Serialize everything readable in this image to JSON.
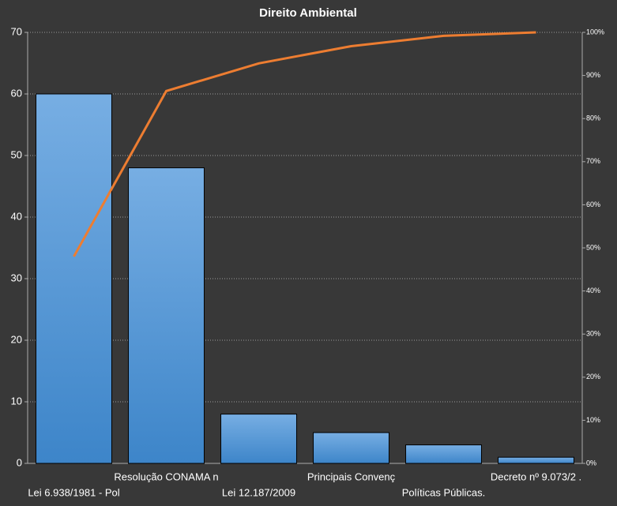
{
  "chart_data": {
    "type": "pareto",
    "title": "Direito  Ambiental",
    "categories": [
      "Lei 6.938/1981 - Pol",
      "Resolução CONAMA n",
      "Lei 12.187/2009",
      "Principais Convenç",
      "Políticas Públicas.",
      "Decreto nº 9.073/2 ."
    ],
    "series": [
      {
        "type": "bar",
        "color": "#5b9bd5",
        "values": [
          60,
          48,
          8,
          5,
          3,
          1
        ]
      },
      {
        "type": "line",
        "axis": "y2",
        "color": "#ed7d31",
        "values": [
          48,
          86.4,
          92.8,
          96.8,
          99.2,
          100
        ]
      }
    ],
    "ylim": [
      0,
      70
    ],
    "yticks": [
      0,
      10,
      20,
      30,
      40,
      50,
      60,
      70
    ],
    "y2lim": [
      0,
      100
    ],
    "y2ticks": [
      {
        "value": 0,
        "label": "0%"
      },
      {
        "value": 10,
        "label": "10%"
      },
      {
        "value": 20,
        "label": "20%"
      },
      {
        "value": 30,
        "label": "30%"
      },
      {
        "value": 40,
        "label": "40%"
      },
      {
        "value": 50,
        "label": "50%"
      },
      {
        "value": 60,
        "label": "60%"
      },
      {
        "value": 70,
        "label": "70%"
      },
      {
        "value": 80,
        "label": "80%"
      },
      {
        "value": 90,
        "label": "90%"
      },
      {
        "value": 100,
        "label": "100%"
      }
    ],
    "grid": true
  }
}
